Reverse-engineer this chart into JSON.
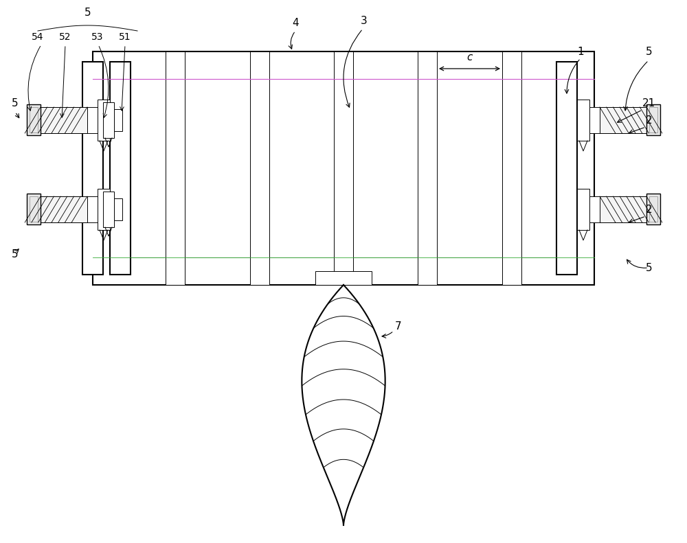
{
  "bg_color": "#ffffff",
  "line_color": "#000000",
  "purple_line": "#cc55cc",
  "green_line": "#33aa33",
  "fig_width": 10.0,
  "fig_height": 7.91,
  "dpi": 100
}
